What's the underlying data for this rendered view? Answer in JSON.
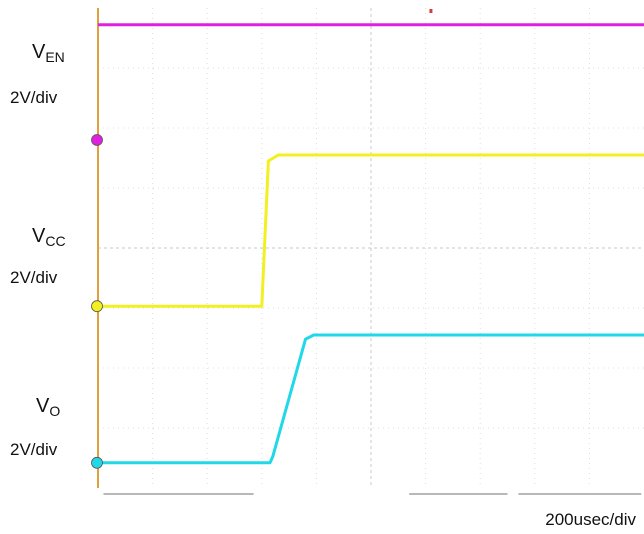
{
  "chart_data": {
    "type": "line",
    "title": "",
    "timebase": "200usec/div",
    "x_unit": "div",
    "xlim": [
      0,
      10
    ],
    "y_unit": "div",
    "ylim": [
      0,
      8
    ],
    "grid": true,
    "series": [
      {
        "name": "VEN",
        "label_main": "V",
        "label_sub": "EN",
        "scale": "2V/div",
        "color": "#e020e0",
        "ground_div": 5.8,
        "x": [
          0,
          10
        ],
        "y": [
          7.72,
          7.72
        ]
      },
      {
        "name": "VCC",
        "label_main": "V",
        "label_sub": "CC",
        "scale": "2V/div",
        "color": "#f2f020",
        "ground_div": 3.03,
        "x": [
          0,
          3.0,
          3.12,
          3.3,
          10
        ],
        "y": [
          3.03,
          3.03,
          5.45,
          5.55,
          5.55
        ]
      },
      {
        "name": "VO",
        "label_main": "V",
        "label_sub": "O",
        "scale": "2V/div",
        "color": "#20d8e8",
        "ground_div": 0.42,
        "x": [
          0,
          3.15,
          3.2,
          3.8,
          3.95,
          10
        ],
        "y": [
          0.42,
          0.42,
          0.52,
          2.48,
          2.55,
          2.55
        ]
      }
    ]
  }
}
